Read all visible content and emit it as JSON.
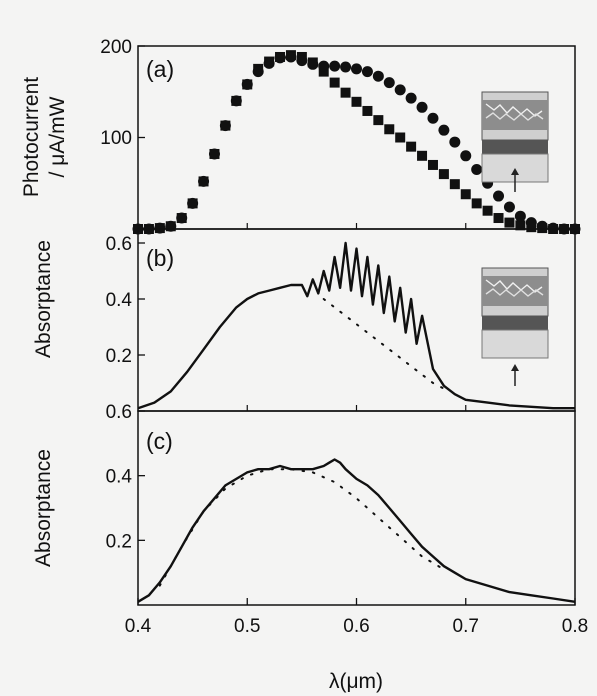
{
  "chart_data": [
    {
      "type": "scatter",
      "panel_label": "(a)",
      "ylabel_line1": "Photocurrent",
      "ylabel_line2": "/ μA/mW",
      "xlim": [
        0.4,
        0.8
      ],
      "ylim": [
        0,
        200
      ],
      "yticks": [
        100,
        200
      ],
      "yticklabels": [
        "100",
        "200"
      ],
      "series": [
        {
          "marker": "square",
          "x": [
            0.4,
            0.41,
            0.42,
            0.43,
            0.44,
            0.45,
            0.46,
            0.47,
            0.48,
            0.49,
            0.5,
            0.51,
            0.52,
            0.53,
            0.54,
            0.55,
            0.56,
            0.57,
            0.58,
            0.59,
            0.6,
            0.61,
            0.62,
            0.63,
            0.64,
            0.65,
            0.66,
            0.67,
            0.68,
            0.69,
            0.7,
            0.71,
            0.72,
            0.73,
            0.74,
            0.75,
            0.76,
            0.77,
            0.78,
            0.79,
            0.8
          ],
          "y": [
            0,
            0,
            1,
            3,
            12,
            28,
            52,
            82,
            113,
            140,
            158,
            175,
            183,
            188,
            190,
            188,
            182,
            172,
            160,
            149,
            139,
            129,
            119,
            109,
            100,
            90,
            80,
            70,
            60,
            49,
            38,
            28,
            20,
            12,
            7,
            4,
            2,
            1,
            0,
            0,
            0
          ]
        },
        {
          "marker": "circle",
          "x": [
            0.4,
            0.41,
            0.42,
            0.43,
            0.44,
            0.45,
            0.46,
            0.47,
            0.48,
            0.49,
            0.5,
            0.51,
            0.52,
            0.53,
            0.54,
            0.55,
            0.56,
            0.57,
            0.58,
            0.59,
            0.6,
            0.61,
            0.62,
            0.63,
            0.64,
            0.65,
            0.66,
            0.67,
            0.68,
            0.69,
            0.7,
            0.71,
            0.72,
            0.73,
            0.74,
            0.75,
            0.76,
            0.77,
            0.78,
            0.79,
            0.8
          ],
          "y": [
            0,
            0,
            1,
            3,
            12,
            28,
            52,
            82,
            113,
            140,
            158,
            172,
            181,
            187,
            188,
            184,
            180,
            178,
            178,
            177,
            175,
            172,
            167,
            160,
            152,
            143,
            133,
            121,
            108,
            95,
            80,
            65,
            50,
            36,
            24,
            14,
            7,
            3,
            1,
            0,
            0
          ]
        }
      ]
    },
    {
      "type": "line",
      "panel_label": "(b)",
      "ylabel": "Absorptance",
      "xlim": [
        0.4,
        0.8
      ],
      "ylim": [
        0,
        0.65
      ],
      "yticks": [
        0.2,
        0.4,
        0.6
      ],
      "yticklabels": [
        "0.2",
        "0.4",
        "0.6"
      ],
      "series": [
        {
          "style": "solid",
          "x": [
            0.4,
            0.415,
            0.43,
            0.445,
            0.46,
            0.475,
            0.49,
            0.5,
            0.51,
            0.52,
            0.53,
            0.54,
            0.55,
            0.555,
            0.56,
            0.565,
            0.57,
            0.575,
            0.58,
            0.585,
            0.59,
            0.595,
            0.6,
            0.605,
            0.61,
            0.615,
            0.62,
            0.625,
            0.63,
            0.635,
            0.64,
            0.645,
            0.65,
            0.655,
            0.66,
            0.67,
            0.68,
            0.69,
            0.7,
            0.72,
            0.74,
            0.76,
            0.78,
            0.8
          ],
          "y": [
            0.01,
            0.03,
            0.07,
            0.14,
            0.22,
            0.3,
            0.37,
            0.4,
            0.42,
            0.43,
            0.44,
            0.45,
            0.45,
            0.41,
            0.47,
            0.42,
            0.5,
            0.43,
            0.55,
            0.44,
            0.6,
            0.43,
            0.58,
            0.41,
            0.55,
            0.38,
            0.52,
            0.35,
            0.48,
            0.32,
            0.44,
            0.28,
            0.4,
            0.24,
            0.34,
            0.15,
            0.09,
            0.06,
            0.04,
            0.03,
            0.02,
            0.015,
            0.01,
            0.01
          ]
        },
        {
          "style": "dotted",
          "x": [
            0.57,
            0.59,
            0.61,
            0.63,
            0.65,
            0.67,
            0.68
          ],
          "y": [
            0.4,
            0.34,
            0.28,
            0.22,
            0.16,
            0.1,
            0.08
          ]
        }
      ]
    },
    {
      "type": "line",
      "panel_label": "(c)",
      "ylabel": "Absorptance",
      "xlabel": "λ(μm)",
      "xlim": [
        0.4,
        0.8
      ],
      "ylim": [
        0,
        0.6
      ],
      "xticks": [
        0.4,
        0.5,
        0.6,
        0.7,
        0.8
      ],
      "xticklabels": [
        "0.4",
        "0.5",
        "0.6",
        "0.7",
        "0.8"
      ],
      "yticks": [
        0.2,
        0.4,
        0.6
      ],
      "yticklabels": [
        "0.2",
        "0.4",
        "0.6"
      ],
      "series": [
        {
          "style": "solid",
          "x": [
            0.4,
            0.41,
            0.42,
            0.43,
            0.44,
            0.45,
            0.46,
            0.47,
            0.48,
            0.49,
            0.5,
            0.51,
            0.52,
            0.53,
            0.54,
            0.55,
            0.56,
            0.57,
            0.575,
            0.58,
            0.585,
            0.59,
            0.6,
            0.61,
            0.62,
            0.63,
            0.64,
            0.65,
            0.66,
            0.67,
            0.68,
            0.69,
            0.7,
            0.72,
            0.74,
            0.76,
            0.78,
            0.8
          ],
          "y": [
            0.01,
            0.03,
            0.07,
            0.12,
            0.18,
            0.24,
            0.29,
            0.33,
            0.37,
            0.39,
            0.41,
            0.42,
            0.42,
            0.43,
            0.42,
            0.42,
            0.42,
            0.43,
            0.44,
            0.45,
            0.44,
            0.42,
            0.39,
            0.37,
            0.34,
            0.3,
            0.26,
            0.22,
            0.18,
            0.15,
            0.12,
            0.1,
            0.08,
            0.06,
            0.04,
            0.03,
            0.02,
            0.01
          ]
        },
        {
          "style": "dotted",
          "x": [
            0.42,
            0.44,
            0.46,
            0.48,
            0.5,
            0.52,
            0.54,
            0.56,
            0.58,
            0.6,
            0.62,
            0.64,
            0.66,
            0.68
          ],
          "y": [
            0.06,
            0.18,
            0.29,
            0.36,
            0.4,
            0.42,
            0.42,
            0.41,
            0.38,
            0.33,
            0.27,
            0.21,
            0.15,
            0.11
          ]
        }
      ]
    }
  ]
}
